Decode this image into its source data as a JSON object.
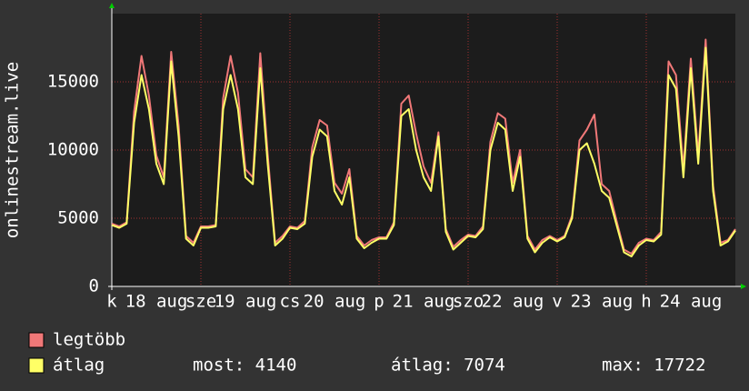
{
  "chart_data": {
    "type": "line",
    "ylabel": "onlinestream.live",
    "xlim": [
      0,
      168
    ],
    "ylim": [
      0,
      20000
    ],
    "yticks": [
      0,
      5000,
      10000,
      15000
    ],
    "xticks": [
      {
        "value": 0,
        "label": "k"
      },
      {
        "value": 12,
        "label": "18 aug"
      },
      {
        "value": 24,
        "label": "sze"
      },
      {
        "value": 36,
        "label": "19 aug"
      },
      {
        "value": 48,
        "label": "cs"
      },
      {
        "value": 60,
        "label": "20 aug"
      },
      {
        "value": 72,
        "label": "p"
      },
      {
        "value": 84,
        "label": "21 aug"
      },
      {
        "value": 96,
        "label": "szo"
      },
      {
        "value": 108,
        "label": "22 aug"
      },
      {
        "value": 120,
        "label": "v"
      },
      {
        "value": 132,
        "label": "23 aug"
      },
      {
        "value": 144,
        "label": "h"
      },
      {
        "value": 156,
        "label": "24 aug"
      }
    ],
    "grid": true,
    "x": [
      0,
      2,
      4,
      6,
      8,
      10,
      12,
      14,
      16,
      18,
      20,
      22,
      24,
      26,
      28,
      30,
      32,
      34,
      36,
      38,
      40,
      42,
      44,
      46,
      48,
      50,
      52,
      54,
      56,
      58,
      60,
      62,
      64,
      66,
      68,
      70,
      72,
      74,
      76,
      78,
      80,
      82,
      84,
      86,
      88,
      90,
      92,
      94,
      96,
      98,
      100,
      102,
      104,
      106,
      108,
      110,
      112,
      114,
      116,
      118,
      120,
      122,
      124,
      126,
      128,
      130,
      132,
      134,
      136,
      138,
      140,
      142,
      144,
      146,
      148,
      150,
      152,
      154,
      156,
      158,
      160,
      162,
      164,
      166,
      168
    ],
    "series": [
      {
        "name": "legtöbb",
        "color": "#f07878",
        "values": [
          4600,
          4400,
          4700,
          12800,
          16900,
          14000,
          9600,
          8000,
          17200,
          11800,
          3700,
          3200,
          4400,
          4400,
          4500,
          13800,
          16900,
          14200,
          8600,
          8000,
          17100,
          9700,
          3200,
          3700,
          4400,
          4300,
          4800,
          10200,
          12200,
          11800,
          7600,
          6800,
          8600,
          3700,
          3000,
          3400,
          3600,
          3600,
          4700,
          13400,
          14000,
          11200,
          8800,
          7600,
          11300,
          4200,
          2900,
          3400,
          3800,
          3700,
          4400,
          10600,
          12700,
          12300,
          7600,
          10000,
          3700,
          2700,
          3400,
          3700,
          3400,
          3700,
          5200,
          10700,
          11500,
          12600,
          7500,
          7000,
          4800,
          2700,
          2400,
          3200,
          3500,
          3400,
          4000,
          16500,
          15500,
          8600,
          16700,
          9600,
          18100,
          7400,
          3200,
          3400,
          4200
        ]
      },
      {
        "name": "átlag",
        "color": "#ffff66",
        "values": [
          4500,
          4300,
          4600,
          12000,
          15500,
          13000,
          9000,
          7500,
          16500,
          11000,
          3500,
          3000,
          4300,
          4300,
          4400,
          13000,
          15500,
          13000,
          8000,
          7500,
          16000,
          9000,
          3000,
          3500,
          4300,
          4200,
          4600,
          9500,
          11500,
          11000,
          7000,
          6000,
          8000,
          3500,
          2800,
          3200,
          3500,
          3500,
          4500,
          12500,
          13000,
          10000,
          8000,
          7000,
          11000,
          4000,
          2700,
          3200,
          3700,
          3600,
          4200,
          10000,
          12000,
          11500,
          7000,
          9500,
          3500,
          2500,
          3200,
          3600,
          3300,
          3600,
          5000,
          10000,
          10500,
          9000,
          7000,
          6500,
          4500,
          2500,
          2200,
          3000,
          3400,
          3300,
          3800,
          15500,
          14500,
          8000,
          16000,
          9000,
          17500,
          7000,
          3000,
          3300,
          4100
        ]
      }
    ],
    "stats": [
      "most: 4140",
      "átlag: 7074",
      "max: 17722"
    ]
  }
}
